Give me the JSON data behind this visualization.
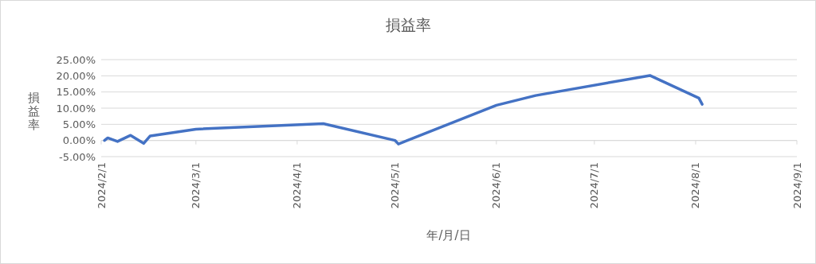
{
  "chart_data": {
    "type": "line",
    "title": "損益率",
    "xlabel": "年/月/日",
    "ylabel": "損益率",
    "x": [
      "2024-02-02",
      "2024-02-03",
      "2024-02-06",
      "2024-02-10",
      "2024-02-14",
      "2024-02-16",
      "2024-03-01",
      "2024-04-09",
      "2024-05-01",
      "2024-05-02",
      "2024-06-01",
      "2024-06-13",
      "2024-07-18",
      "2024-08-02",
      "2024-08-03"
    ],
    "series": [
      {
        "color": "#4472c4",
        "values": [
          0.0,
          0.8,
          -0.3,
          1.6,
          -0.9,
          1.4,
          3.5,
          5.2,
          0.0,
          -1.1,
          10.9,
          13.9,
          20.1,
          13.1,
          11.2
        ]
      }
    ],
    "xlim": [
      "2024-02-01",
      "2024-09-01"
    ],
    "xticks": [
      {
        "value": "2024-02-01",
        "label": "2024/2/1"
      },
      {
        "value": "2024-03-01",
        "label": "2024/3/1"
      },
      {
        "value": "2024-04-01",
        "label": "2024/4/1"
      },
      {
        "value": "2024-05-01",
        "label": "2024/5/1"
      },
      {
        "value": "2024-06-01",
        "label": "2024/6/1"
      },
      {
        "value": "2024-07-01",
        "label": "2024/7/1"
      },
      {
        "value": "2024-08-01",
        "label": "2024/8/1"
      },
      {
        "value": "2024-09-01",
        "label": "2024/9/1"
      }
    ],
    "ylim": [
      -5,
      25
    ],
    "yticks": [
      {
        "value": -5,
        "label": "-5.00%"
      },
      {
        "value": 0,
        "label": "0.00%"
      },
      {
        "value": 5,
        "label": "5.00%"
      },
      {
        "value": 10,
        "label": "10.00%"
      },
      {
        "value": 15,
        "label": "15.00%"
      },
      {
        "value": 20,
        "label": "20.00%"
      },
      {
        "value": 25,
        "label": "25.00%"
      }
    ],
    "grid": "y",
    "marker": "none",
    "line_style": "solid"
  }
}
